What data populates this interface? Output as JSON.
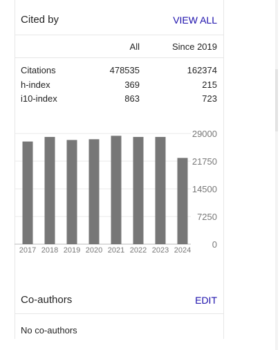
{
  "cited_by": {
    "title": "Cited by",
    "view_all": "VIEW ALL",
    "col_all": "All",
    "col_since": "Since 2019",
    "rows": [
      {
        "name": "Citations",
        "all": "478535",
        "since": "162374"
      },
      {
        "name": "h-index",
        "all": "369",
        "since": "215"
      },
      {
        "name": "i10-index",
        "all": "863",
        "since": "723"
      }
    ]
  },
  "chart_data": {
    "type": "bar",
    "categories": [
      "2017",
      "2018",
      "2019",
      "2020",
      "2021",
      "2022",
      "2023",
      "2024"
    ],
    "values": [
      26900,
      28100,
      27300,
      27500,
      28400,
      28100,
      28100,
      22600
    ],
    "yticks": [
      "29000",
      "21750",
      "14500",
      "7250",
      "0"
    ],
    "ylim": [
      0,
      29000
    ],
    "grid": true,
    "bar_color": "#777777"
  },
  "co_authors": {
    "title": "Co-authors",
    "edit": "EDIT",
    "empty_text": "No co-authors"
  }
}
